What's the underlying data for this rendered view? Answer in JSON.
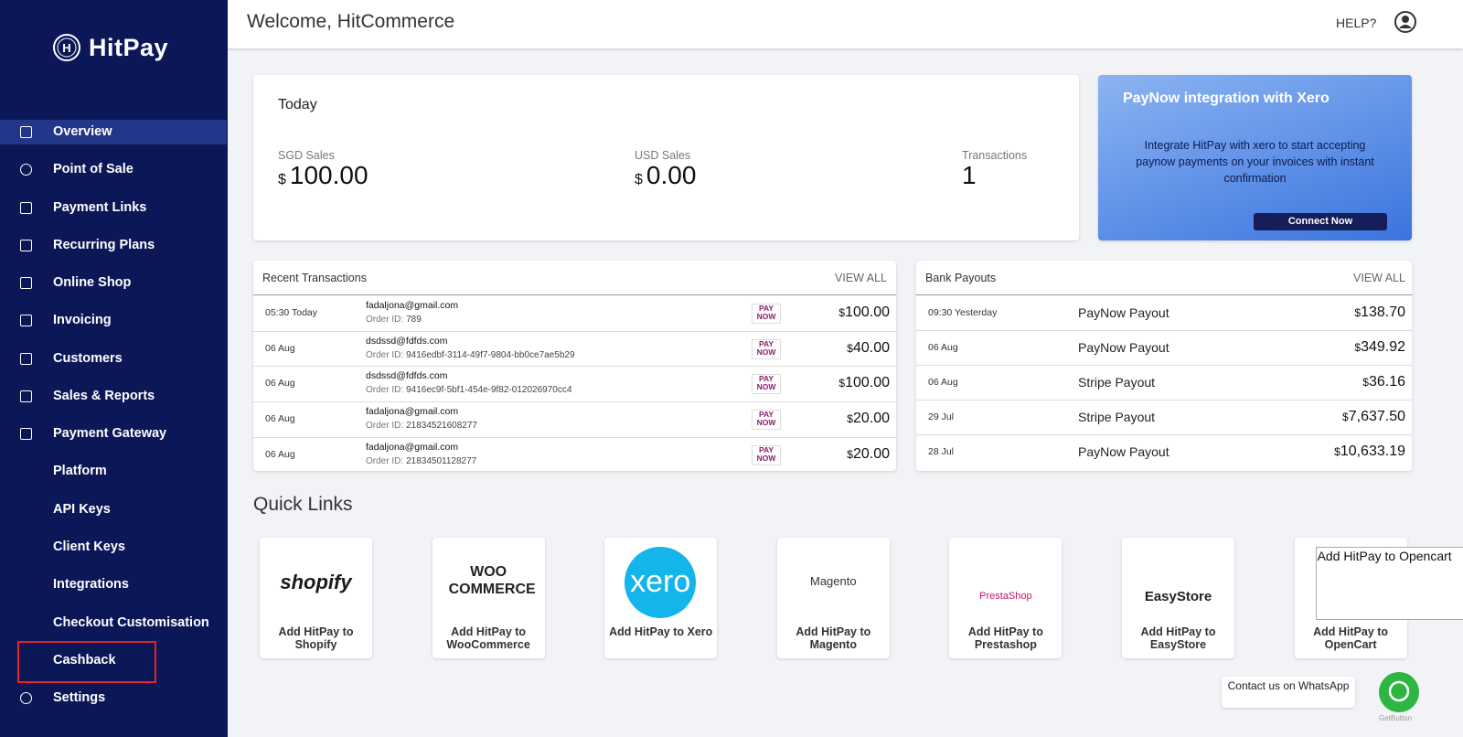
{
  "sidebar": {
    "brand": "HitPay",
    "logo_letter": "H",
    "nav": [
      "Overview",
      "Point of Sale",
      "Payment Links",
      "Recurring Plans",
      "Online Shop",
      "Invoicing",
      "Customers",
      "Sales & Reports",
      "Payment Gateway",
      "Platform",
      "API Keys",
      "Client Keys",
      "Integrations",
      "Checkout Customisation",
      "Cashback",
      "Settings"
    ]
  },
  "header": {
    "title": "Welcome, HitCommerce",
    "help": "HELP?"
  },
  "today": {
    "title": "Today",
    "stats": [
      {
        "label": "SGD Sales",
        "currency": "$",
        "value": "100.00"
      },
      {
        "label": "USD Sales",
        "currency": "$",
        "value": "0.00"
      },
      {
        "label": "Transactions",
        "value": "1"
      }
    ]
  },
  "promo": {
    "title": "PayNow integration with Xero",
    "text": "Integrate HitPay with xero to start accepting paynow payments on your invoices with instant confirmation",
    "button": "Connect Now"
  },
  "badge": {
    "top": "PAY",
    "bottom": "NOW"
  },
  "recent": {
    "title": "Recent Transactions",
    "view_all": "VIEW ALL",
    "order_label": "Order ID:",
    "rows": [
      {
        "time": "05:30 Today",
        "email": "fadaljona@gmail.com",
        "order_id": "789",
        "currency": "$",
        "amount": "100.00"
      },
      {
        "time": "06 Aug",
        "email": "dsdssd@fdfds.com",
        "order_id": "9416edbf-3114-49f7-9804-bb0ce7ae5b29",
        "currency": "$",
        "amount": "40.00"
      },
      {
        "time": "06 Aug",
        "email": "dsdssd@fdfds.com",
        "order_id": "9416ec9f-5bf1-454e-9f82-012026970cc4",
        "currency": "$",
        "amount": "100.00"
      },
      {
        "time": "06 Aug",
        "email": "fadaljona@gmail.com",
        "order_id": "21834521608277",
        "currency": "$",
        "amount": "20.00"
      },
      {
        "time": "06 Aug",
        "email": "fadaljona@gmail.com",
        "order_id": "21834501128277",
        "currency": "$",
        "amount": "20.00"
      }
    ]
  },
  "payouts": {
    "title": "Bank Payouts",
    "view_all": "VIEW ALL",
    "rows": [
      {
        "time": "09:30 Yesterday",
        "name": "PayNow Payout",
        "currency": "$",
        "amount": "138.70"
      },
      {
        "time": "06 Aug",
        "name": "PayNow Payout",
        "currency": "$",
        "amount": "349.92"
      },
      {
        "time": "06 Aug",
        "name": "Stripe Payout",
        "currency": "$",
        "amount": "36.16"
      },
      {
        "time": "29 Jul",
        "name": "Stripe Payout",
        "currency": "$",
        "amount": "7,637.50"
      },
      {
        "time": "28 Jul",
        "name": "PayNow Payout",
        "currency": "$",
        "amount": "10,633.19"
      }
    ]
  },
  "quick_links": {
    "title": "Quick Links",
    "items": [
      {
        "logo": "shopify",
        "label": "Add HitPay to Shopify"
      },
      {
        "logo": "WOO COMMERCE",
        "label": "Add HitPay to WooCommerce"
      },
      {
        "logo": "xero",
        "label": "Add HitPay to Xero"
      },
      {
        "logo": "Magento",
        "label": "Add HitPay to Magento"
      },
      {
        "logo": "PrestaShop",
        "label": "Add HitPay to Prestashop"
      },
      {
        "logo": "EasyStore",
        "label": "Add HitPay to EasyStore"
      },
      {
        "logo": "Add HitPay to Opencart",
        "label": "Add HitPay to OpenCart"
      }
    ]
  },
  "whatsapp": {
    "text": "Contact us on WhatsApp",
    "credit": "GetButton"
  }
}
